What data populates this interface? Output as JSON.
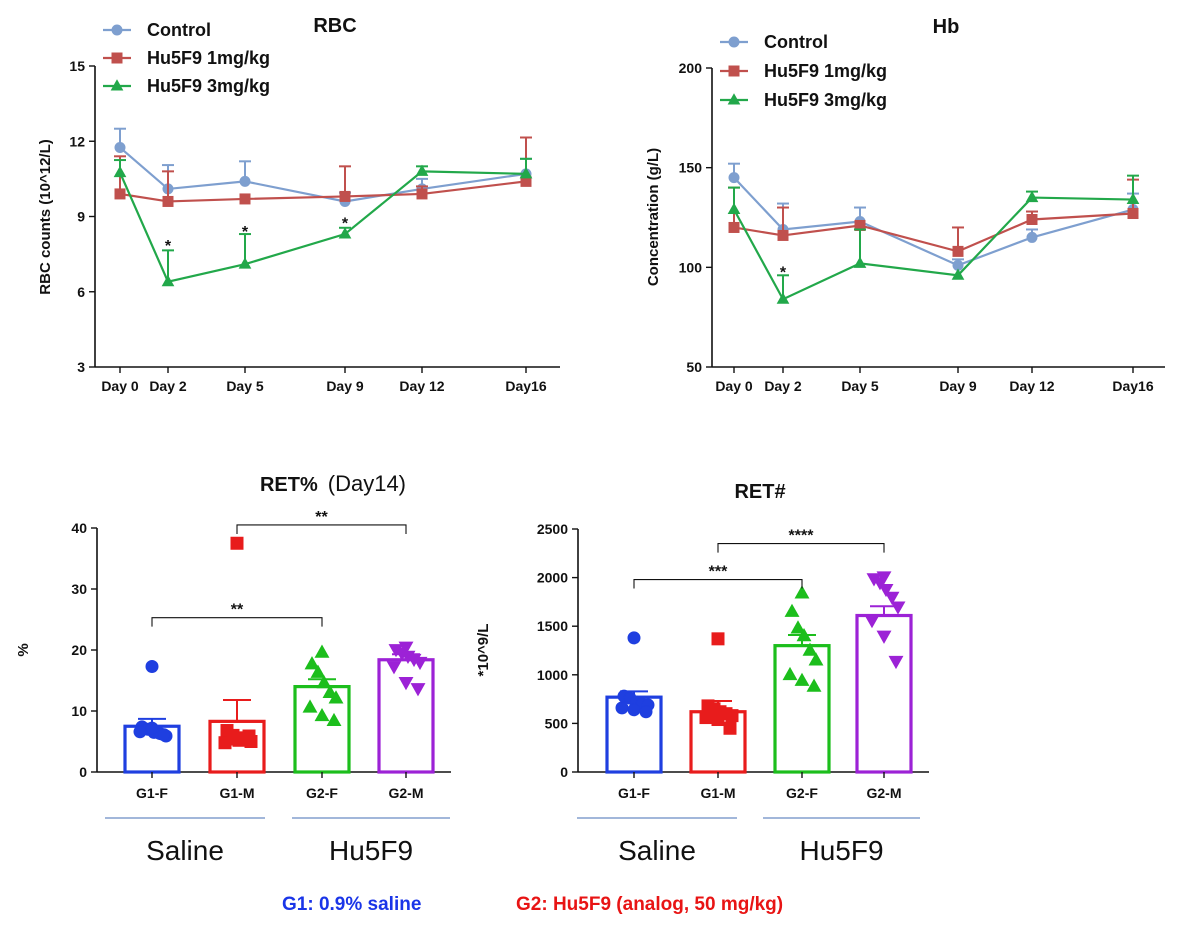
{
  "chart_data": [
    {
      "id": "rbc",
      "type": "line",
      "title": "RBC",
      "xlabel": "",
      "ylabel": "RBC counts (10^12/L)",
      "ylim": [
        3,
        15
      ],
      "yticks": [
        "3",
        "6",
        "9",
        "12",
        "15"
      ],
      "x": [
        0,
        2,
        5,
        9,
        12,
        16
      ],
      "x_tick_labels": [
        "Day 0",
        "Day 2",
        "Day 5",
        "Day 9",
        "Day 12",
        "Day16"
      ],
      "series": [
        {
          "name": "Control",
          "color": "#7e9fcf",
          "marker": "circle",
          "values": [
            11.75,
            10.1,
            10.4,
            9.6,
            10.1,
            10.7
          ],
          "errors": [
            0.75,
            0.95,
            0.8,
            0.35,
            0.4,
            0.6
          ]
        },
        {
          "name": "Hu5F9 1mg/kg",
          "color": "#c0504d",
          "marker": "square",
          "values": [
            9.9,
            9.6,
            9.7,
            9.8,
            9.9,
            10.4
          ],
          "errors": [
            1.5,
            1.2,
            0,
            1.2,
            0.3,
            1.75
          ]
        },
        {
          "name": "Hu5F9 3mg/kg",
          "color": "#22a84a",
          "marker": "triangle",
          "values": [
            10.75,
            6.4,
            7.1,
            8.3,
            10.8,
            10.7
          ],
          "errors": [
            0.5,
            1.25,
            1.2,
            0.25,
            0.2,
            0.6
          ]
        }
      ],
      "annotations": [
        {
          "x": 2,
          "y": 7.95,
          "text": "*"
        },
        {
          "x": 5,
          "y": 8.5,
          "text": "*"
        },
        {
          "x": 9,
          "y": 8.85,
          "text": "*"
        }
      ]
    },
    {
      "id": "hb",
      "type": "line",
      "title": "Hb",
      "xlabel": "",
      "ylabel": "Concentration (g/L)",
      "ylim": [
        50,
        200
      ],
      "yticks": [
        "50",
        "100",
        "150",
        "200"
      ],
      "x": [
        0,
        2,
        5,
        9,
        12,
        16
      ],
      "x_tick_labels": [
        "Day 0",
        "Day 2",
        "Day 5",
        "Day 9",
        "Day 12",
        "Day16"
      ],
      "series": [
        {
          "name": "Control",
          "color": "#7e9fcf",
          "marker": "circle",
          "values": [
            145,
            119,
            123,
            101,
            115,
            129
          ],
          "errors": [
            7,
            13,
            7,
            3,
            4,
            8
          ]
        },
        {
          "name": "Hu5F9 1mg/kg",
          "color": "#c0504d",
          "marker": "square",
          "values": [
            120,
            116,
            121,
            108,
            124,
            127
          ],
          "errors": [
            20,
            14,
            0,
            12,
            4,
            17
          ]
        },
        {
          "name": "Hu5F9 3mg/kg",
          "color": "#22a84a",
          "marker": "triangle",
          "values": [
            129,
            84,
            102,
            96,
            135,
            134
          ],
          "errors": [
            11,
            12,
            17,
            0,
            3,
            12
          ]
        }
      ],
      "annotations": [
        {
          "x": 2,
          "y": 99,
          "text": "*"
        }
      ]
    },
    {
      "id": "ret_pct",
      "type": "bar",
      "title": "RET%",
      "subtitle": "(Day14)",
      "ylabel": "%",
      "ylim": [
        0,
        40
      ],
      "yticks": [
        "0",
        "10",
        "20",
        "30",
        "40"
      ],
      "categories": [
        "G1-F",
        "G1-M",
        "G2-F",
        "G2-M"
      ],
      "values": [
        7.5,
        8.3,
        14.0,
        18.4
      ],
      "errors": [
        1.2,
        3.5,
        1.2,
        0.9
      ],
      "colors": [
        "#1f3fe0",
        "#e81c1c",
        "#1cbe1c",
        "#9c22d6"
      ],
      "markers": [
        "circle",
        "square",
        "triangle",
        "triangle-down"
      ],
      "points": [
        [
          17.3,
          7.4,
          7.0,
          6.5,
          6.3,
          5.9,
          6.6,
          7.2,
          6.1
        ],
        [
          37.5,
          6.8,
          6.0,
          5.2,
          5.6,
          5.0,
          4.8,
          5.4,
          5.9
        ],
        [
          19.6,
          17.7,
          16.3,
          14.6,
          13.0,
          12.1,
          10.6,
          9.2,
          8.4
        ],
        [
          20.5,
          20.1,
          19.5,
          19.0,
          18.5,
          18.0,
          17.3,
          14.7,
          13.7
        ]
      ],
      "significance": [
        {
          "from": 0,
          "to": 2,
          "label": "**",
          "y": 25.3
        },
        {
          "from": 1,
          "to": 3,
          "label": "**",
          "y": 40.5
        }
      ],
      "group_labels": [
        {
          "label": "Saline",
          "from": 0,
          "to": 1
        },
        {
          "label": "Hu5F9",
          "from": 2,
          "to": 3
        }
      ]
    },
    {
      "id": "ret_abs",
      "type": "bar",
      "title": "RET#",
      "ylabel": "*10^9/L",
      "ylim": [
        0,
        2500
      ],
      "yticks": [
        "0",
        "500",
        "1000",
        "1500",
        "2000",
        "2500"
      ],
      "categories": [
        "G1-F",
        "G1-M",
        "G2-F",
        "G2-M"
      ],
      "values": [
        770,
        620,
        1300,
        1610
      ],
      "errors": [
        60,
        110,
        110,
        95
      ],
      "colors": [
        "#1f3fe0",
        "#e81c1c",
        "#1cbe1c",
        "#9c22d6"
      ],
      "markers": [
        "circle",
        "square",
        "triangle",
        "triangle-down"
      ],
      "points": [
        [
          1380,
          780,
          760,
          720,
          700,
          690,
          660,
          640,
          620
        ],
        [
          1370,
          680,
          650,
          620,
          600,
          580,
          560,
          540,
          450
        ],
        [
          1840,
          1650,
          1480,
          1400,
          1250,
          1150,
          1000,
          940,
          880
        ],
        [
          2010,
          1990,
          1950,
          1880,
          1800,
          1700,
          1560,
          1400,
          1140
        ]
      ],
      "significance": [
        {
          "from": 0,
          "to": 2,
          "label": "***",
          "y": 1980
        },
        {
          "from": 1,
          "to": 3,
          "label": "****",
          "y": 2350
        }
      ],
      "group_labels": [
        {
          "label": "Saline",
          "from": 0,
          "to": 1
        },
        {
          "label": "Hu5F9",
          "from": 2,
          "to": 3
        }
      ]
    }
  ],
  "footer": {
    "g1": "G1: 0.9% saline",
    "g1_color": "#1a35e8",
    "g2": "G2: Hu5F9 (analog, 50 mg/kg)",
    "g2_color": "#e81414"
  }
}
